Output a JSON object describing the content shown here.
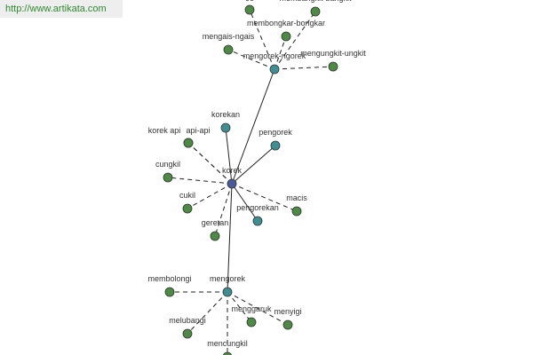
{
  "banner": {
    "url": "http://www.artikata.com"
  },
  "nodes": [
    {
      "label": "korek"
    },
    {
      "label": "korekan"
    },
    {
      "label": "pengorek"
    },
    {
      "label": "pengorekan"
    },
    {
      "label": "mengorek"
    },
    {
      "label": "mengorek-ngorek"
    },
    {
      "label": "korek api"
    },
    {
      "label": "api-api"
    },
    {
      "label": "cungkil"
    },
    {
      "label": "cukil"
    },
    {
      "label": "geretan"
    },
    {
      "label": "macis"
    },
    {
      "label": "membolongi"
    },
    {
      "label": "melubangi"
    },
    {
      "label": "mencungkil"
    },
    {
      "label": "menggaruk"
    },
    {
      "label": "menyigi"
    },
    {
      "label": "menggaruk"
    },
    {
      "label": "membangkit-bangkit"
    },
    {
      "label": "membongkar-bongkar"
    },
    {
      "label": "mengais-ngais"
    },
    {
      "label": "mengungkit-ungkit"
    }
  ]
}
